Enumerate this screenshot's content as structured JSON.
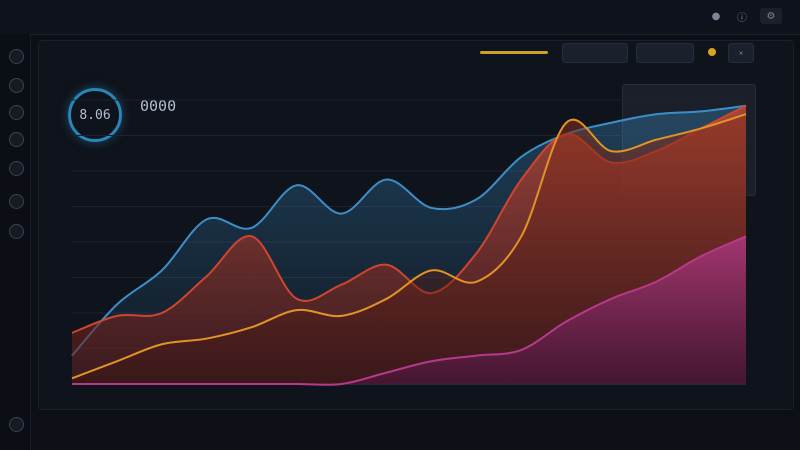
{
  "app": {
    "title": "",
    "menu": [
      "",
      ""
    ]
  },
  "toolbar": {
    "icons": [
      "mic-icon",
      "info-icon",
      "settings-icon"
    ]
  },
  "sidebar": {
    "icons": [
      "grid-icon",
      "clock-icon",
      "chart-icon",
      "layers-icon",
      "globe-icon",
      "user-icon",
      "gear-icon"
    ]
  },
  "panel": {
    "title": "",
    "menu": [
      "",
      ""
    ],
    "buttons": [
      "",
      ""
    ],
    "gauge_value": "8.06",
    "big_value": "0000",
    "legend": [
      "",
      "",
      ""
    ]
  },
  "right_card": {
    "title": "",
    "rows": [
      [
        "",
        ""
      ],
      [
        "",
        ""
      ],
      [
        "",
        ""
      ]
    ]
  },
  "lower_list": [
    [
      "",
      ""
    ],
    [
      "",
      ""
    ]
  ],
  "colors": {
    "blue": "#3b8fc8",
    "red": "#d0452e",
    "orange": "#e39326",
    "magenta": "#b73a8a",
    "panel": "#0f131b",
    "accent": "#c9a227"
  },
  "chart_data": {
    "type": "area",
    "title": "",
    "x": [
      "",
      "",
      "",
      "",
      "",
      "",
      "",
      "",
      "",
      "",
      "",
      "",
      "",
      "",
      "",
      ""
    ],
    "ylim": [
      0,
      100
    ],
    "grid": true,
    "series": [
      {
        "color": "#3b8fc8",
        "values": [
          10,
          28,
          40,
          58,
          55,
          70,
          60,
          72,
          62,
          65,
          80,
          88,
          92,
          95,
          96,
          98
        ]
      },
      {
        "color": "#d0452e",
        "values": [
          18,
          24,
          25,
          38,
          52,
          30,
          35,
          42,
          32,
          46,
          72,
          88,
          78,
          82,
          90,
          98
        ]
      },
      {
        "color": "#e39326",
        "values": [
          2,
          8,
          14,
          16,
          20,
          26,
          24,
          30,
          40,
          36,
          52,
          92,
          82,
          86,
          90,
          95
        ]
      },
      {
        "color": "#b73a8a",
        "values": [
          0,
          0,
          0,
          0,
          0,
          0,
          0,
          4,
          8,
          10,
          12,
          22,
          30,
          36,
          45,
          52
        ]
      }
    ]
  }
}
